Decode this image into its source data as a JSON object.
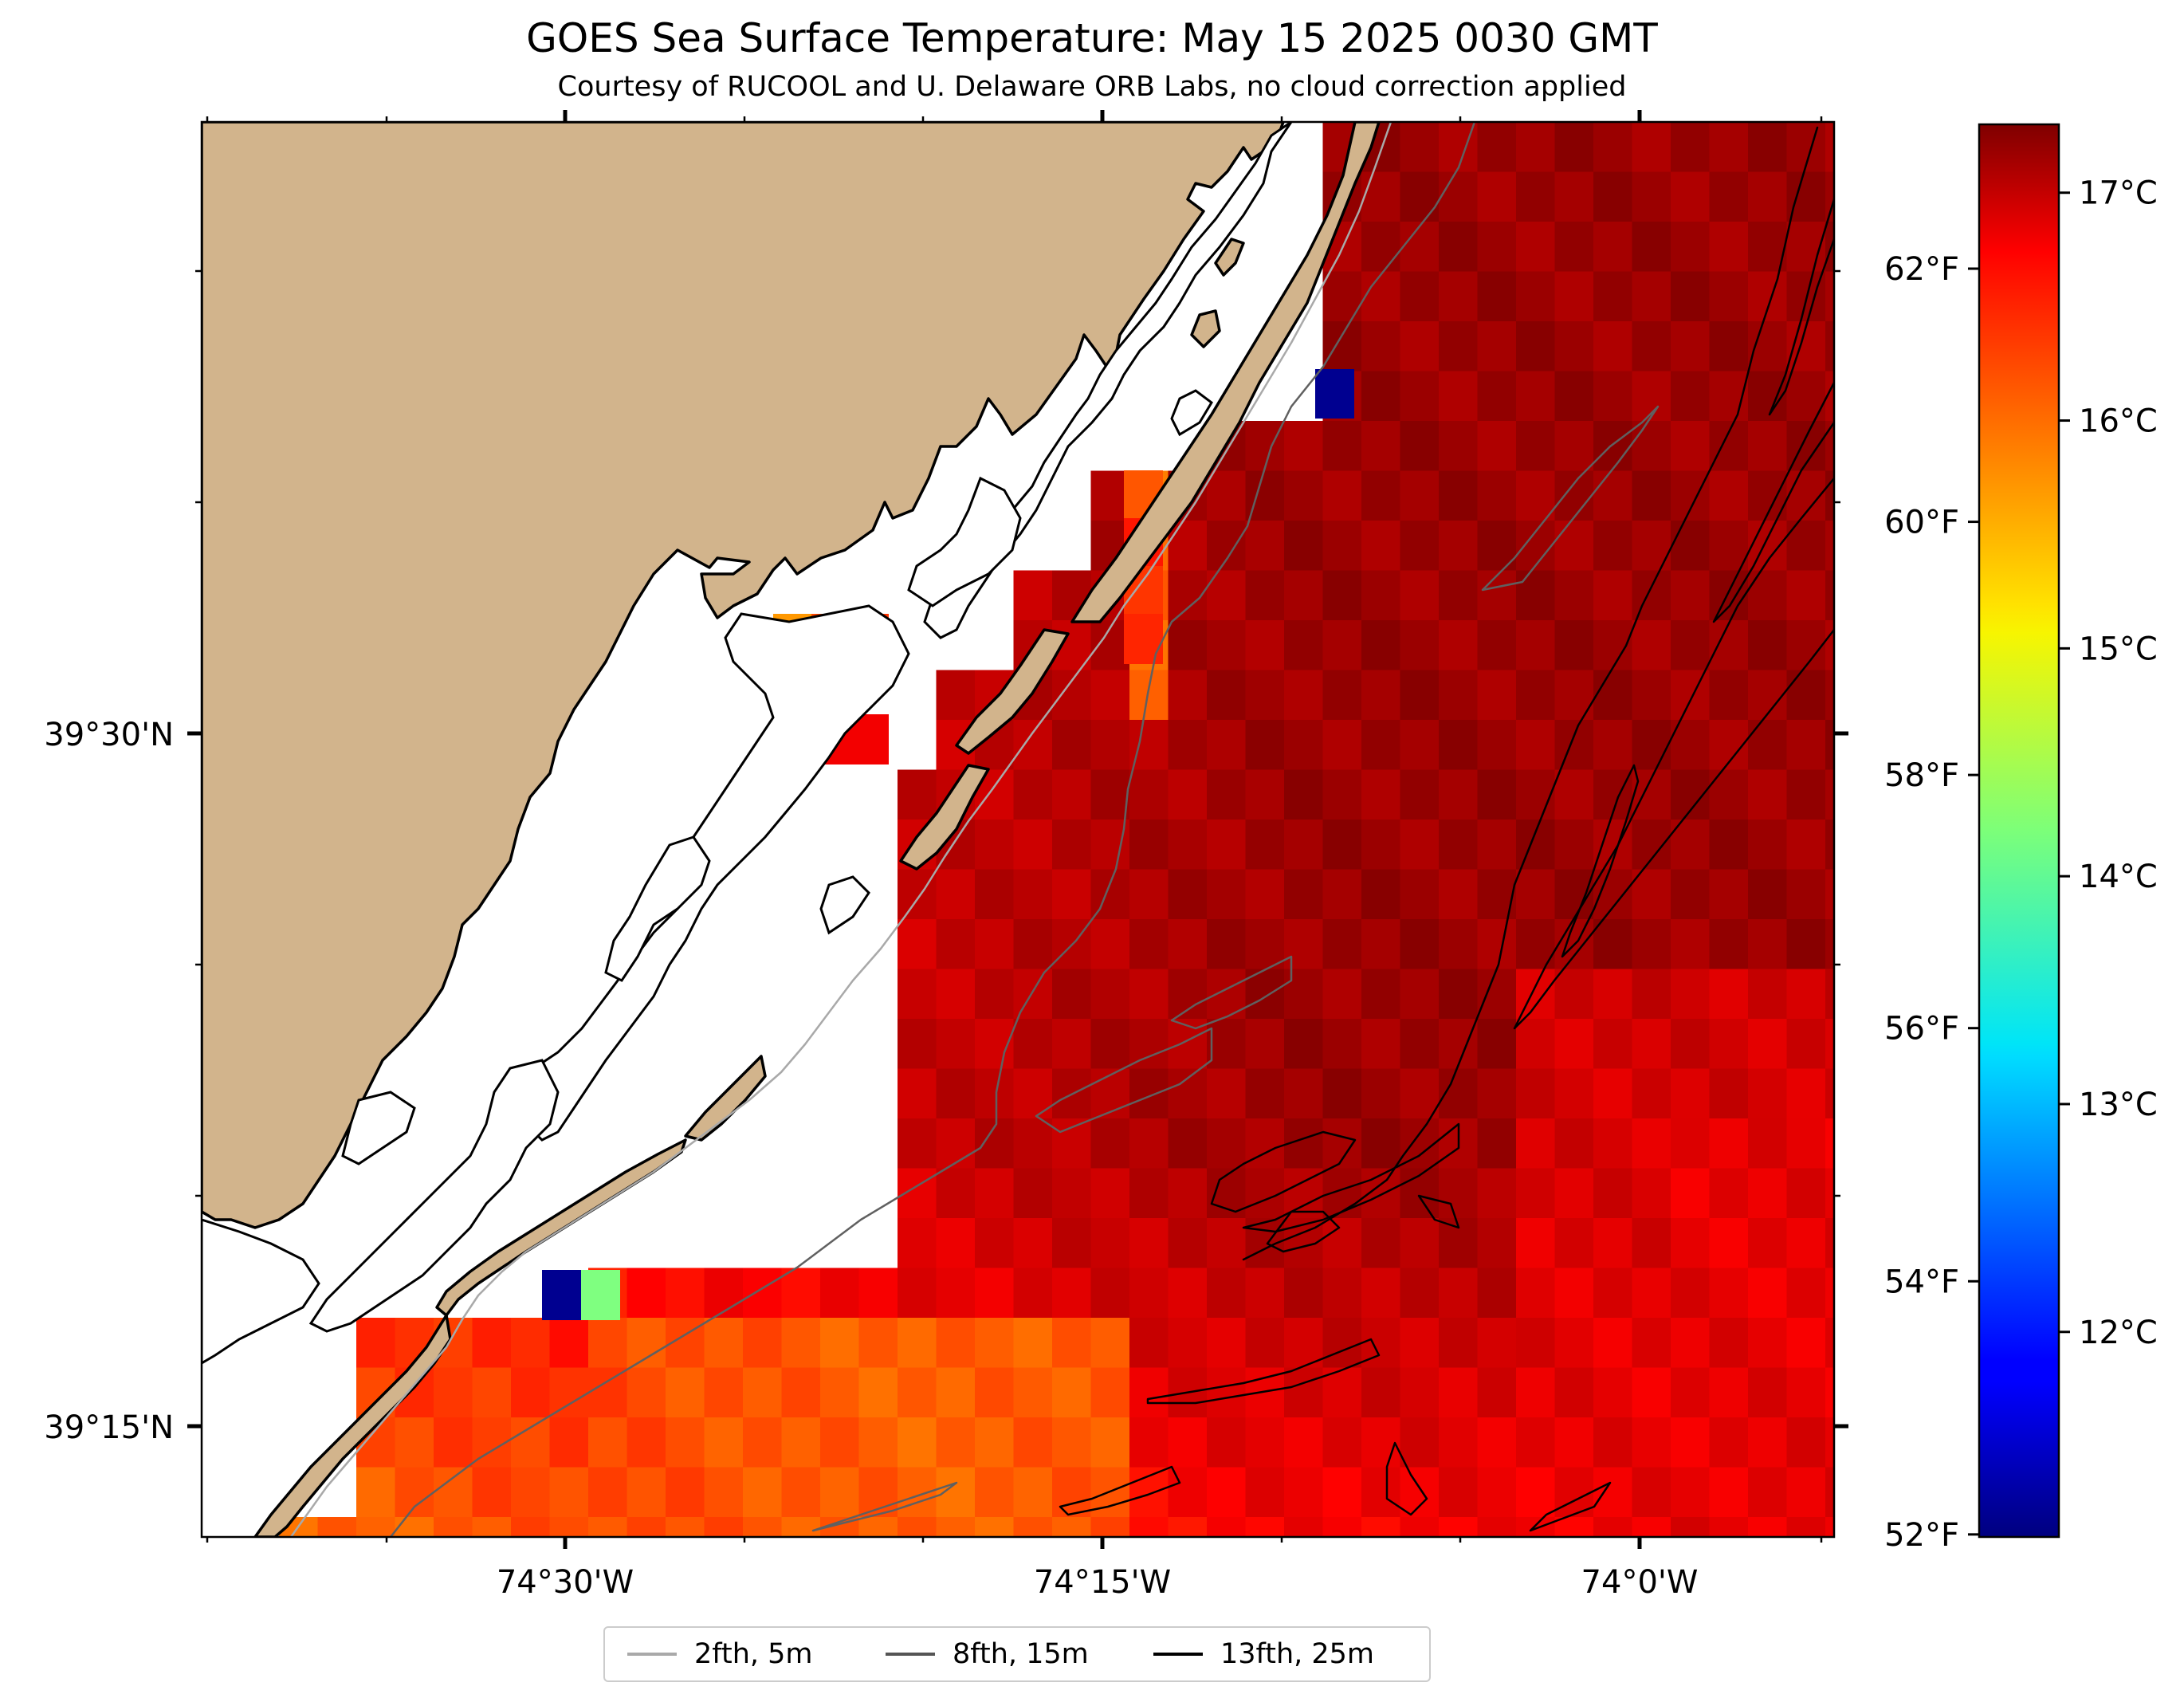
{
  "title": "GOES Sea Surface Temperature: May 15 2025 0030 GMT",
  "subtitle": "Courtesy of RUCOOL and U. Delaware ORB Labs, no cloud correction applied",
  "map": {
    "longitude_ticks": [
      "74°30'W",
      "74°15'W",
      "74°0'W"
    ],
    "latitude_ticks": [
      "39°30'N",
      "39°15'N"
    ],
    "land_color": "#d2b48c",
    "no_data_color": "#ffffff"
  },
  "colorbar": {
    "colormap": "jet",
    "celsius_range": [
      11.1,
      17.3
    ],
    "celsius_ticks": [
      {
        "label": "17°C",
        "value": 17
      },
      {
        "label": "16°C",
        "value": 16
      },
      {
        "label": "15°C",
        "value": 15
      },
      {
        "label": "14°C",
        "value": 14
      },
      {
        "label": "13°C",
        "value": 13
      },
      {
        "label": "12°C",
        "value": 12
      }
    ],
    "fahrenheit_ticks": [
      {
        "label": "62°F",
        "value": 62
      },
      {
        "label": "60°F",
        "value": 60
      },
      {
        "label": "58°F",
        "value": 58
      },
      {
        "label": "56°F",
        "value": 56
      },
      {
        "label": "54°F",
        "value": 54
      },
      {
        "label": "52°F",
        "value": 52
      }
    ]
  },
  "legend": {
    "items": [
      {
        "label": "2fth, 5m",
        "color": "#a9a9a9"
      },
      {
        "label": "8fth, 15m",
        "color": "#555555"
      },
      {
        "label": "13fth, 25m",
        "color": "#000000"
      }
    ]
  }
}
